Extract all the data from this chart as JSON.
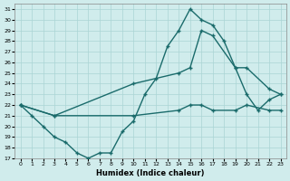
{
  "xlabel": "Humidex (Indice chaleur)",
  "background_color": "#d0ecec",
  "grid_color": "#aad4d4",
  "line_color": "#1a6b6b",
  "xlim": [
    -0.5,
    23.5
  ],
  "ylim": [
    17,
    31.5
  ],
  "yticks": [
    17,
    18,
    19,
    20,
    21,
    22,
    23,
    24,
    25,
    26,
    27,
    28,
    29,
    30,
    31
  ],
  "xticks": [
    0,
    1,
    2,
    3,
    4,
    5,
    6,
    7,
    8,
    9,
    10,
    11,
    12,
    13,
    14,
    15,
    16,
    17,
    18,
    19,
    20,
    21,
    22,
    23
  ],
  "line1_x": [
    0,
    1,
    2,
    3,
    4,
    5,
    6,
    7,
    8,
    9,
    10,
    11,
    12,
    13,
    14,
    15,
    16,
    17,
    18,
    19,
    20,
    21,
    22,
    23
  ],
  "line1_y": [
    22,
    21,
    20,
    19,
    18.5,
    17.5,
    17,
    17.5,
    17.5,
    19.5,
    20.5,
    23,
    24.5,
    27.5,
    29,
    31,
    30,
    29.5,
    28,
    25.5,
    23,
    21.5,
    22.5,
    23
  ],
  "line2_x": [
    0,
    3,
    10,
    14,
    15,
    16,
    17,
    19,
    20,
    22,
    23
  ],
  "line2_y": [
    22,
    21,
    24,
    25,
    25.5,
    29,
    28.5,
    25.5,
    25.5,
    23.5,
    23
  ],
  "line3_x": [
    0,
    3,
    10,
    14,
    15,
    16,
    17,
    19,
    20,
    22,
    23
  ],
  "line3_y": [
    22,
    21,
    21,
    21.5,
    22,
    22,
    21.5,
    21.5,
    22,
    21.5,
    21.5
  ],
  "marker_size": 2.5,
  "linewidth": 1.0
}
